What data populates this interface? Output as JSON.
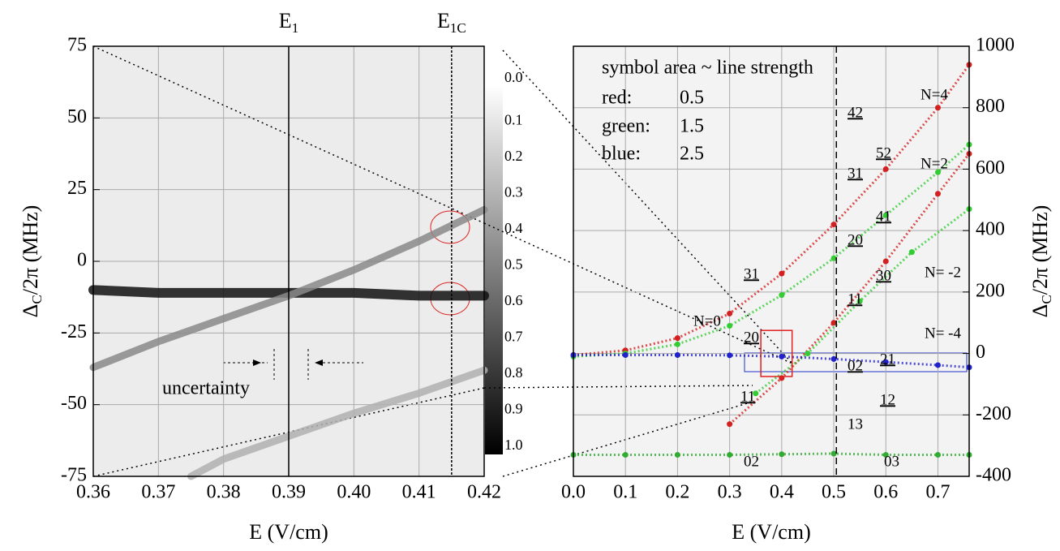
{
  "chart_data": [
    {
      "type": "heatmap-lines",
      "xlabel": "E (V/cm)",
      "ylabel": {
        "symbol": "Δ",
        "sub": "C",
        "rest": "/2π (MHz)"
      },
      "xlim": [
        0.36,
        0.42
      ],
      "xticks": [
        0.36,
        0.37,
        0.38,
        0.39,
        {
          "value": 0.4,
          "label": "0.40"
        },
        0.41,
        0.42
      ],
      "ylim": [
        -75,
        75
      ],
      "yticks": [
        -75,
        -50,
        -25,
        0,
        25,
        50,
        75
      ],
      "grid": true,
      "vlines": [
        {
          "value": 0.39,
          "label": "E",
          "sub": "1"
        },
        {
          "value": 0.415,
          "label": "E",
          "sub": "1C"
        }
      ],
      "annotation": "uncertainty",
      "colorbar": {
        "lim": [
          0,
          1
        ],
        "ticks": [
          {
            "value": 0,
            "label": "0.0"
          },
          0.1,
          0.2,
          0.3,
          0.4,
          0.5,
          0.6,
          0.7,
          0.8,
          0.9,
          {
            "value": 1,
            "label": "1.0"
          }
        ]
      },
      "series": [
        {
          "color": "#111111",
          "x": [
            0.36,
            0.37,
            0.38,
            0.39,
            0.4,
            0.41,
            0.42
          ],
          "values": [
            -10,
            -11,
            -11,
            -11,
            -11,
            -12,
            -12
          ]
        },
        {
          "color": "#8a8a8a",
          "x": [
            0.36,
            0.37,
            0.38,
            0.39,
            0.4,
            0.41,
            0.42
          ],
          "values": [
            -37,
            -28,
            -20,
            -12,
            -3,
            7,
            18
          ]
        },
        {
          "color": "#b0b0b0",
          "x": [
            0.375,
            0.38,
            0.39,
            0.4,
            0.41,
            0.42
          ],
          "values": [
            -75,
            -69,
            -61,
            -53,
            -46,
            -38
          ]
        }
      ]
    },
    {
      "type": "dots",
      "xlabel": "E (V/cm)",
      "ylabel": {
        "symbol": "Δ",
        "sub": "C",
        "rest": "/2π (MHz)"
      },
      "xlim": [
        0,
        0.76
      ],
      "xticks": [
        {
          "value": 0,
          "label": "0.0"
        },
        0.1,
        0.2,
        0.3,
        0.4,
        0.5,
        0.6,
        0.7
      ],
      "ylim": [
        -400,
        1000
      ],
      "yticks": [
        -400,
        -200,
        0,
        200,
        400,
        600,
        800,
        1000
      ],
      "grid": true,
      "dashed_line": 0.505,
      "legend": [
        "symbol area ~ line strength",
        "red:",
        "0.5",
        "green:",
        "1.5",
        "blue:",
        "2.5"
      ],
      "labels": [
        "42",
        "52",
        "31",
        "41",
        "20",
        "30",
        "11",
        "21",
        "02",
        "13",
        "12",
        "03",
        "31",
        "20",
        "11",
        "02",
        "N=4",
        "N=2",
        "N= -2",
        "N= -4",
        "N=0"
      ],
      "series": [
        {
          "color": "#d42020",
          "x": [
            0,
            0.1,
            0.2,
            0.3,
            0.4,
            0.5,
            0.6,
            0.7,
            0.76
          ],
          "values": [
            -5,
            10,
            50,
            130,
            260,
            420,
            600,
            800,
            940
          ]
        },
        {
          "color": "#33cc33",
          "x": [
            0,
            0.1,
            0.2,
            0.3,
            0.4,
            0.5,
            0.6,
            0.7,
            0.76
          ],
          "values": [
            -10,
            0,
            30,
            90,
            190,
            310,
            450,
            590,
            680
          ]
        },
        {
          "color": "#d42020",
          "x": [
            0.3,
            0.4,
            0.5,
            0.6,
            0.7,
            0.76
          ],
          "values": [
            -230,
            -80,
            100,
            300,
            520,
            650
          ]
        },
        {
          "color": "#33cc33",
          "x": [
            0.35,
            0.45,
            0.55,
            0.65,
            0.76
          ],
          "values": [
            -130,
            0,
            170,
            330,
            470
          ]
        },
        {
          "color": "#2222cc",
          "x": [
            0,
            0.1,
            0.2,
            0.3,
            0.4,
            0.5,
            0.6,
            0.7,
            0.76
          ],
          "values": [
            -5,
            -5,
            -5,
            -6,
            -10,
            -18,
            -28,
            -38,
            -45
          ]
        },
        {
          "color": "#33aa33",
          "x": [
            0,
            0.1,
            0.2,
            0.3,
            0.4,
            0.5,
            0.6,
            0.7,
            0.76
          ],
          "values": [
            -330,
            -330,
            -330,
            -330,
            -328,
            -326,
            -330,
            -330,
            -330
          ]
        }
      ]
    }
  ]
}
